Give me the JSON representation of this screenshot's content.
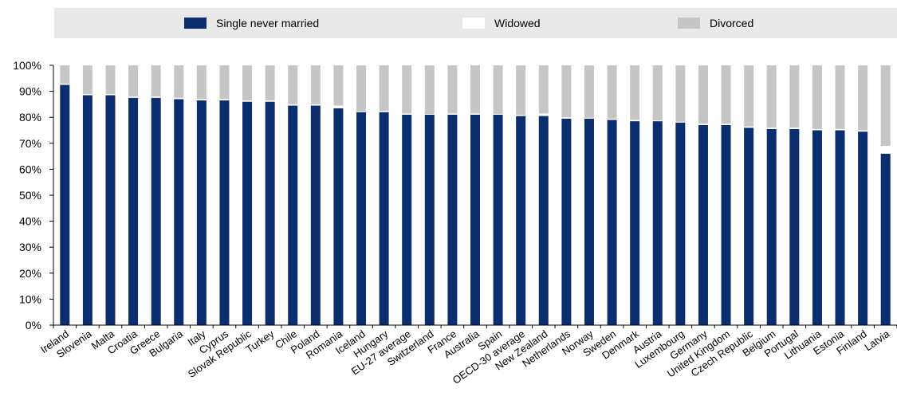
{
  "colors": {
    "single": "#0b2e6e",
    "widowed": "#ffffff",
    "divorced": "#c6c6c6",
    "axis": "#000000"
  },
  "legend": {
    "single": "Single never married",
    "widowed": "Widowed",
    "divorced": "Divorced"
  },
  "chart_data": {
    "type": "bar",
    "stacked": true,
    "title": "",
    "xlabel": "",
    "ylabel": "",
    "ylim": [
      0,
      100
    ],
    "yticks": [
      "0%",
      "10%",
      "20%",
      "30%",
      "40%",
      "50%",
      "60%",
      "70%",
      "80%",
      "90%",
      "100%"
    ],
    "categories": [
      "Ireland",
      "Slovenia",
      "Malta",
      "Croatia",
      "Greece",
      "Bulgaria",
      "Italy",
      "Cyprus",
      "Slovak Republic",
      "Turkey",
      "Chile",
      "Poland",
      "Romania",
      "Iceland",
      "Hungary",
      "EU-27 average",
      "Switzerland",
      "France",
      "Australia",
      "Spain",
      "OECD-30 average",
      "New Zealand",
      "Netherlands",
      "Norway",
      "Sweden",
      "Denmark",
      "Austria",
      "Luxembourg",
      "Germany",
      "United Kingdom",
      "Czech Republic",
      "Belgium",
      "Portugal",
      "Lithuania",
      "Estonia",
      "Finland",
      "Latvia"
    ],
    "series": [
      {
        "name": "Single never married",
        "values": [
          92.5,
          88.5,
          88.5,
          87.5,
          87.5,
          87,
          86.5,
          86.5,
          86,
          86,
          84.5,
          84.5,
          83.5,
          82,
          82,
          81,
          81,
          81,
          81,
          81,
          80.5,
          80.5,
          79.5,
          79.5,
          79,
          78.5,
          78.5,
          78,
          77,
          77,
          76,
          75.5,
          75.5,
          75,
          75,
          74.5,
          66
        ]
      },
      {
        "name": "Widowed",
        "values": [
          0.5,
          0.5,
          0.5,
          0.5,
          0.5,
          0.5,
          0.5,
          0.5,
          0.5,
          0.5,
          0.5,
          0.5,
          1,
          0.3,
          0.5,
          0.5,
          0.3,
          0.5,
          0.5,
          0.3,
          0.5,
          1,
          0.5,
          0.3,
          0.5,
          0.5,
          0.3,
          0.3,
          0.5,
          0.5,
          0.5,
          0.5,
          0.5,
          0.5,
          0.5,
          0.5,
          3
        ]
      },
      {
        "name": "Divorced",
        "values": [
          7,
          11,
          11,
          12,
          12,
          12.5,
          13,
          13,
          13.5,
          13.5,
          15,
          15,
          15.5,
          17.7,
          17.5,
          18.5,
          18.7,
          18.5,
          18.5,
          18.7,
          19,
          18.5,
          20,
          20.2,
          20.5,
          21,
          21.2,
          21.7,
          22.5,
          22.5,
          23.5,
          24,
          24,
          24.5,
          24.5,
          25,
          31
        ]
      }
    ]
  }
}
